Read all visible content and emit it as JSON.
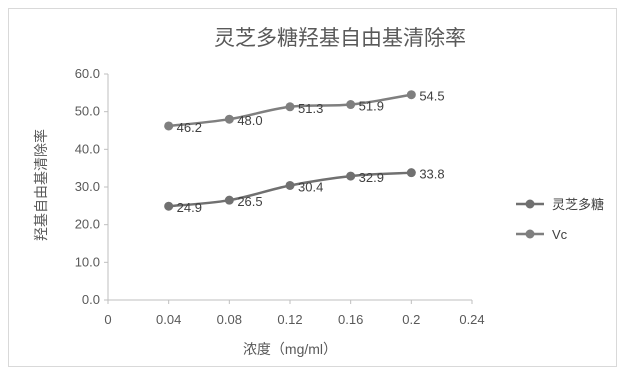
{
  "chart_data": {
    "type": "line",
    "title": "灵芝多糖羟基自由基清除率",
    "xlabel": "浓度（mg/ml）",
    "ylabel": "羟基自由基清除率",
    "x": [
      0.04,
      0.08,
      0.12,
      0.16,
      0.2
    ],
    "x_ticks": [
      "0",
      "0.04",
      "0.08",
      "0.12",
      "0.16",
      "0.2",
      "0.24"
    ],
    "xlim": [
      0,
      0.24
    ],
    "y_ticks": [
      "0.0",
      "10.0",
      "20.0",
      "30.0",
      "40.0",
      "50.0",
      "60.0"
    ],
    "ylim": [
      0,
      60
    ],
    "grid": false,
    "legend_position": "right",
    "series": [
      {
        "name": "灵芝多糖",
        "values": [
          24.9,
          26.5,
          30.4,
          32.9,
          33.8
        ],
        "labels": [
          "24.9",
          "26.5",
          "30.4",
          "32.9",
          "33.8"
        ],
        "color": "#707070"
      },
      {
        "name": "Vc",
        "values": [
          46.2,
          48.0,
          51.3,
          51.9,
          54.5
        ],
        "labels": [
          "46.2",
          "48.0",
          "51.3",
          "51.9",
          "54.5"
        ],
        "color": "#7f7f7f"
      }
    ]
  }
}
